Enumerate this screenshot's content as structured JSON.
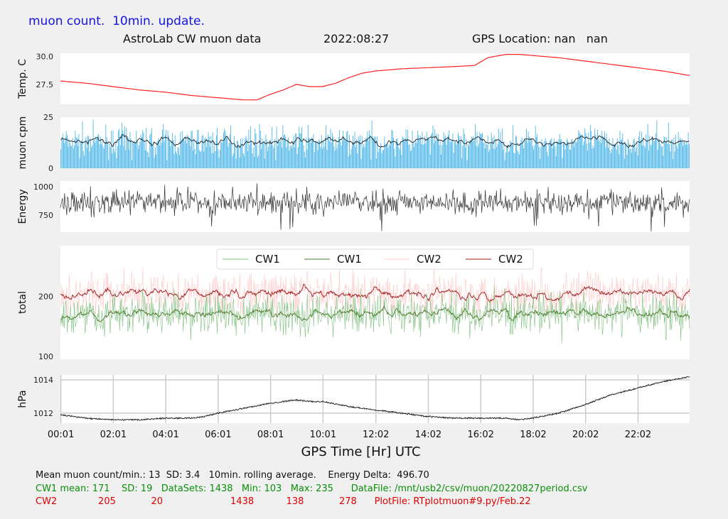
{
  "header": {
    "title": "muon count.  10min. update.",
    "subtitle": "AstroLab CW muon data",
    "date": "2022:08:27",
    "gps": "GPS Location: nan   nan"
  },
  "colors": {
    "temp": "#ff2020",
    "cpm_bar": "#4fb8e8",
    "cpm_avg": "#222222",
    "energy": "#333333",
    "cw1_raw": "#7fc07f",
    "cw1_avg": "#4a7a2a",
    "cw2_raw": "#ffc8c8",
    "cw2_avg": "#a01818",
    "pressure": "#111111"
  },
  "chart_data": [
    {
      "type": "line",
      "ylabel": "Temp. C",
      "yticks": [
        "27.5",
        "30.0"
      ],
      "ylim": [
        25.7,
        30.3
      ],
      "series": [
        {
          "points": [
            [
              0,
              27.8
            ],
            [
              1,
              27.6
            ],
            [
              2,
              27.3
            ],
            [
              3,
              27.0
            ],
            [
              4,
              26.8
            ],
            [
              5,
              26.5
            ],
            [
              6,
              26.3
            ],
            [
              7,
              26.1
            ],
            [
              7.5,
              26.1
            ],
            [
              8,
              26.6
            ],
            [
              8.5,
              27.0
            ],
            [
              9,
              27.5
            ],
            [
              9.5,
              27.3
            ],
            [
              10,
              27.3
            ],
            [
              10.5,
              27.6
            ],
            [
              11,
              28.1
            ],
            [
              11.5,
              28.5
            ],
            [
              12,
              28.7
            ],
            [
              13,
              28.9
            ],
            [
              14,
              29.0
            ],
            [
              15,
              29.1
            ],
            [
              15.8,
              29.2
            ],
            [
              16.3,
              29.9
            ],
            [
              17,
              30.2
            ],
            [
              17.5,
              30.2
            ],
            [
              18,
              30.1
            ],
            [
              19,
              29.9
            ],
            [
              20,
              29.6
            ],
            [
              21,
              29.3
            ],
            [
              22,
              29.0
            ],
            [
              23,
              28.7
            ],
            [
              24,
              28.3
            ]
          ]
        }
      ]
    },
    {
      "type": "bar",
      "ylabel": "muon cpm",
      "yticks": [
        "0",
        "25"
      ],
      "ylim": [
        0,
        25
      ],
      "series": [
        {
          "mean": 13,
          "sd": 3.4,
          "min": 4,
          "max": 26
        }
      ]
    },
    {
      "type": "line",
      "ylabel": "Energy",
      "yticks": [
        "750",
        "1000"
      ],
      "ylim": [
        600,
        1050
      ],
      "series": [
        {
          "mean": 860,
          "spread": 60,
          "min": 600,
          "max": 1030
        }
      ]
    },
    {
      "type": "line",
      "ylabel": "total",
      "yticks": [
        "100",
        "200"
      ],
      "ylim": [
        95,
        285
      ],
      "legend": [
        "CW1",
        "CW1",
        "CW2",
        "CW2"
      ],
      "legend_position": "top-center",
      "series": [
        {
          "name": "CW1",
          "mean": 171,
          "sd": 19,
          "min": 103,
          "max": 235
        },
        {
          "name": "CW2",
          "mean": 205,
          "sd": 20,
          "min": 138,
          "max": 278
        }
      ]
    },
    {
      "type": "line",
      "ylabel": "hPa",
      "yticks": [
        "1012",
        "1014"
      ],
      "ylim": [
        1011.4,
        1014.3
      ],
      "grid": true,
      "xlabel": "GPS Time  [Hr] UTC",
      "xticks": [
        "00:01",
        "02:01",
        "04:01",
        "06:01",
        "08:01",
        "10:01",
        "12:02",
        "14:02",
        "16:02",
        "18:02",
        "20:02",
        "22:02"
      ],
      "xlim": [
        "00:00",
        "24:00"
      ],
      "series": [
        {
          "points": [
            [
              0,
              1011.9
            ],
            [
              1,
              1011.7
            ],
            [
              2,
              1011.6
            ],
            [
              3,
              1011.6
            ],
            [
              4,
              1011.7
            ],
            [
              5,
              1011.7
            ],
            [
              5.5,
              1011.8
            ],
            [
              6,
              1012.0
            ],
            [
              7,
              1012.3
            ],
            [
              8,
              1012.6
            ],
            [
              9,
              1012.8
            ],
            [
              9.5,
              1012.7
            ],
            [
              10,
              1012.7
            ],
            [
              11,
              1012.4
            ],
            [
              12,
              1012.2
            ],
            [
              13,
              1012.0
            ],
            [
              14,
              1011.8
            ],
            [
              15,
              1011.7
            ],
            [
              16,
              1011.7
            ],
            [
              17,
              1011.7
            ],
            [
              17.5,
              1011.6
            ],
            [
              18,
              1011.7
            ],
            [
              19,
              1012.0
            ],
            [
              20,
              1012.5
            ],
            [
              21,
              1013.1
            ],
            [
              22,
              1013.5
            ],
            [
              23,
              1013.9
            ],
            [
              24,
              1014.2
            ]
          ]
        }
      ]
    }
  ],
  "footer": {
    "line1": "Mean muon count/min.: 13  SD: 3.4   10min. rolling average.    Energy Delta:  496.70",
    "cw1_line": "CW1 mean: 171    SD: 19   DataSets: 1438   Min: 103   Max: 235      DataFile: /mnt/usb2/csv/muon/20220827period.csv",
    "cw2_line": "CW2              205            20                       1438           138            278      PlotFile: RTplotmuon#9.py/Feb.22"
  }
}
